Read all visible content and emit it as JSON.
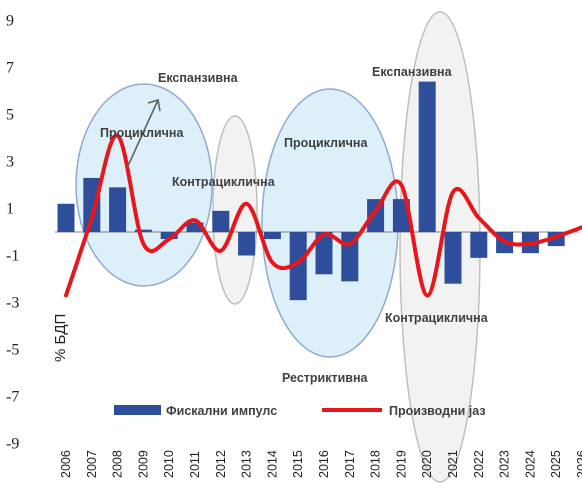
{
  "chart_data": {
    "type": "bar",
    "categories": [
      "2006",
      "2007",
      "2008",
      "2009",
      "2010",
      "2011",
      "2012",
      "2013",
      "2014",
      "2015",
      "2016",
      "2017",
      "2018",
      "2019",
      "2020",
      "2021",
      "2022",
      "2023",
      "2024",
      "2025",
      "2026"
    ],
    "ylabel": "% БДП",
    "ylim": [
      -9,
      9
    ],
    "yticks": [
      9,
      7,
      5,
      3,
      1,
      -1,
      -3,
      -5,
      -7,
      -9
    ],
    "series": [
      {
        "name": "Фискални импулс",
        "type": "bar",
        "color": "#2E4D9A",
        "values": [
          1.2,
          2.3,
          1.9,
          0.1,
          -0.3,
          0.4,
          0.9,
          -1.0,
          -0.3,
          -2.9,
          -1.8,
          -2.1,
          1.4,
          1.4,
          6.4,
          -2.2,
          -1.1,
          -0.9,
          -0.9,
          -0.6,
          0.0
        ]
      },
      {
        "name": "Производни јаз",
        "type": "line",
        "color": "#E8161B",
        "values": [
          -2.7,
          0.6,
          4.1,
          -0.5,
          -0.3,
          0.5,
          -0.8,
          1.2,
          -1.3,
          -1.3,
          -0.1,
          -0.5,
          0.9,
          2.0,
          -2.7,
          1.7,
          0.6,
          -0.4,
          -0.5,
          -0.2,
          0.2
        ]
      }
    ],
    "annotations": [
      "Експанзивна",
      "Процикличнa",
      "Контрациклична",
      "Процикличнa",
      "Експанзивна",
      "Контрациклична",
      "Рестриктивна"
    ],
    "legend_position": "bottom",
    "grid": false,
    "colors": {
      "bar": "#2E4D9A",
      "line": "#E8161B",
      "ellipse_blue_fill": "#DDF0FA",
      "ellipse_blue_stroke": "#8FA9D4",
      "ellipse_gray_fill": "#F2F2F2",
      "ellipse_gray_stroke": "#BFBFBF"
    }
  }
}
